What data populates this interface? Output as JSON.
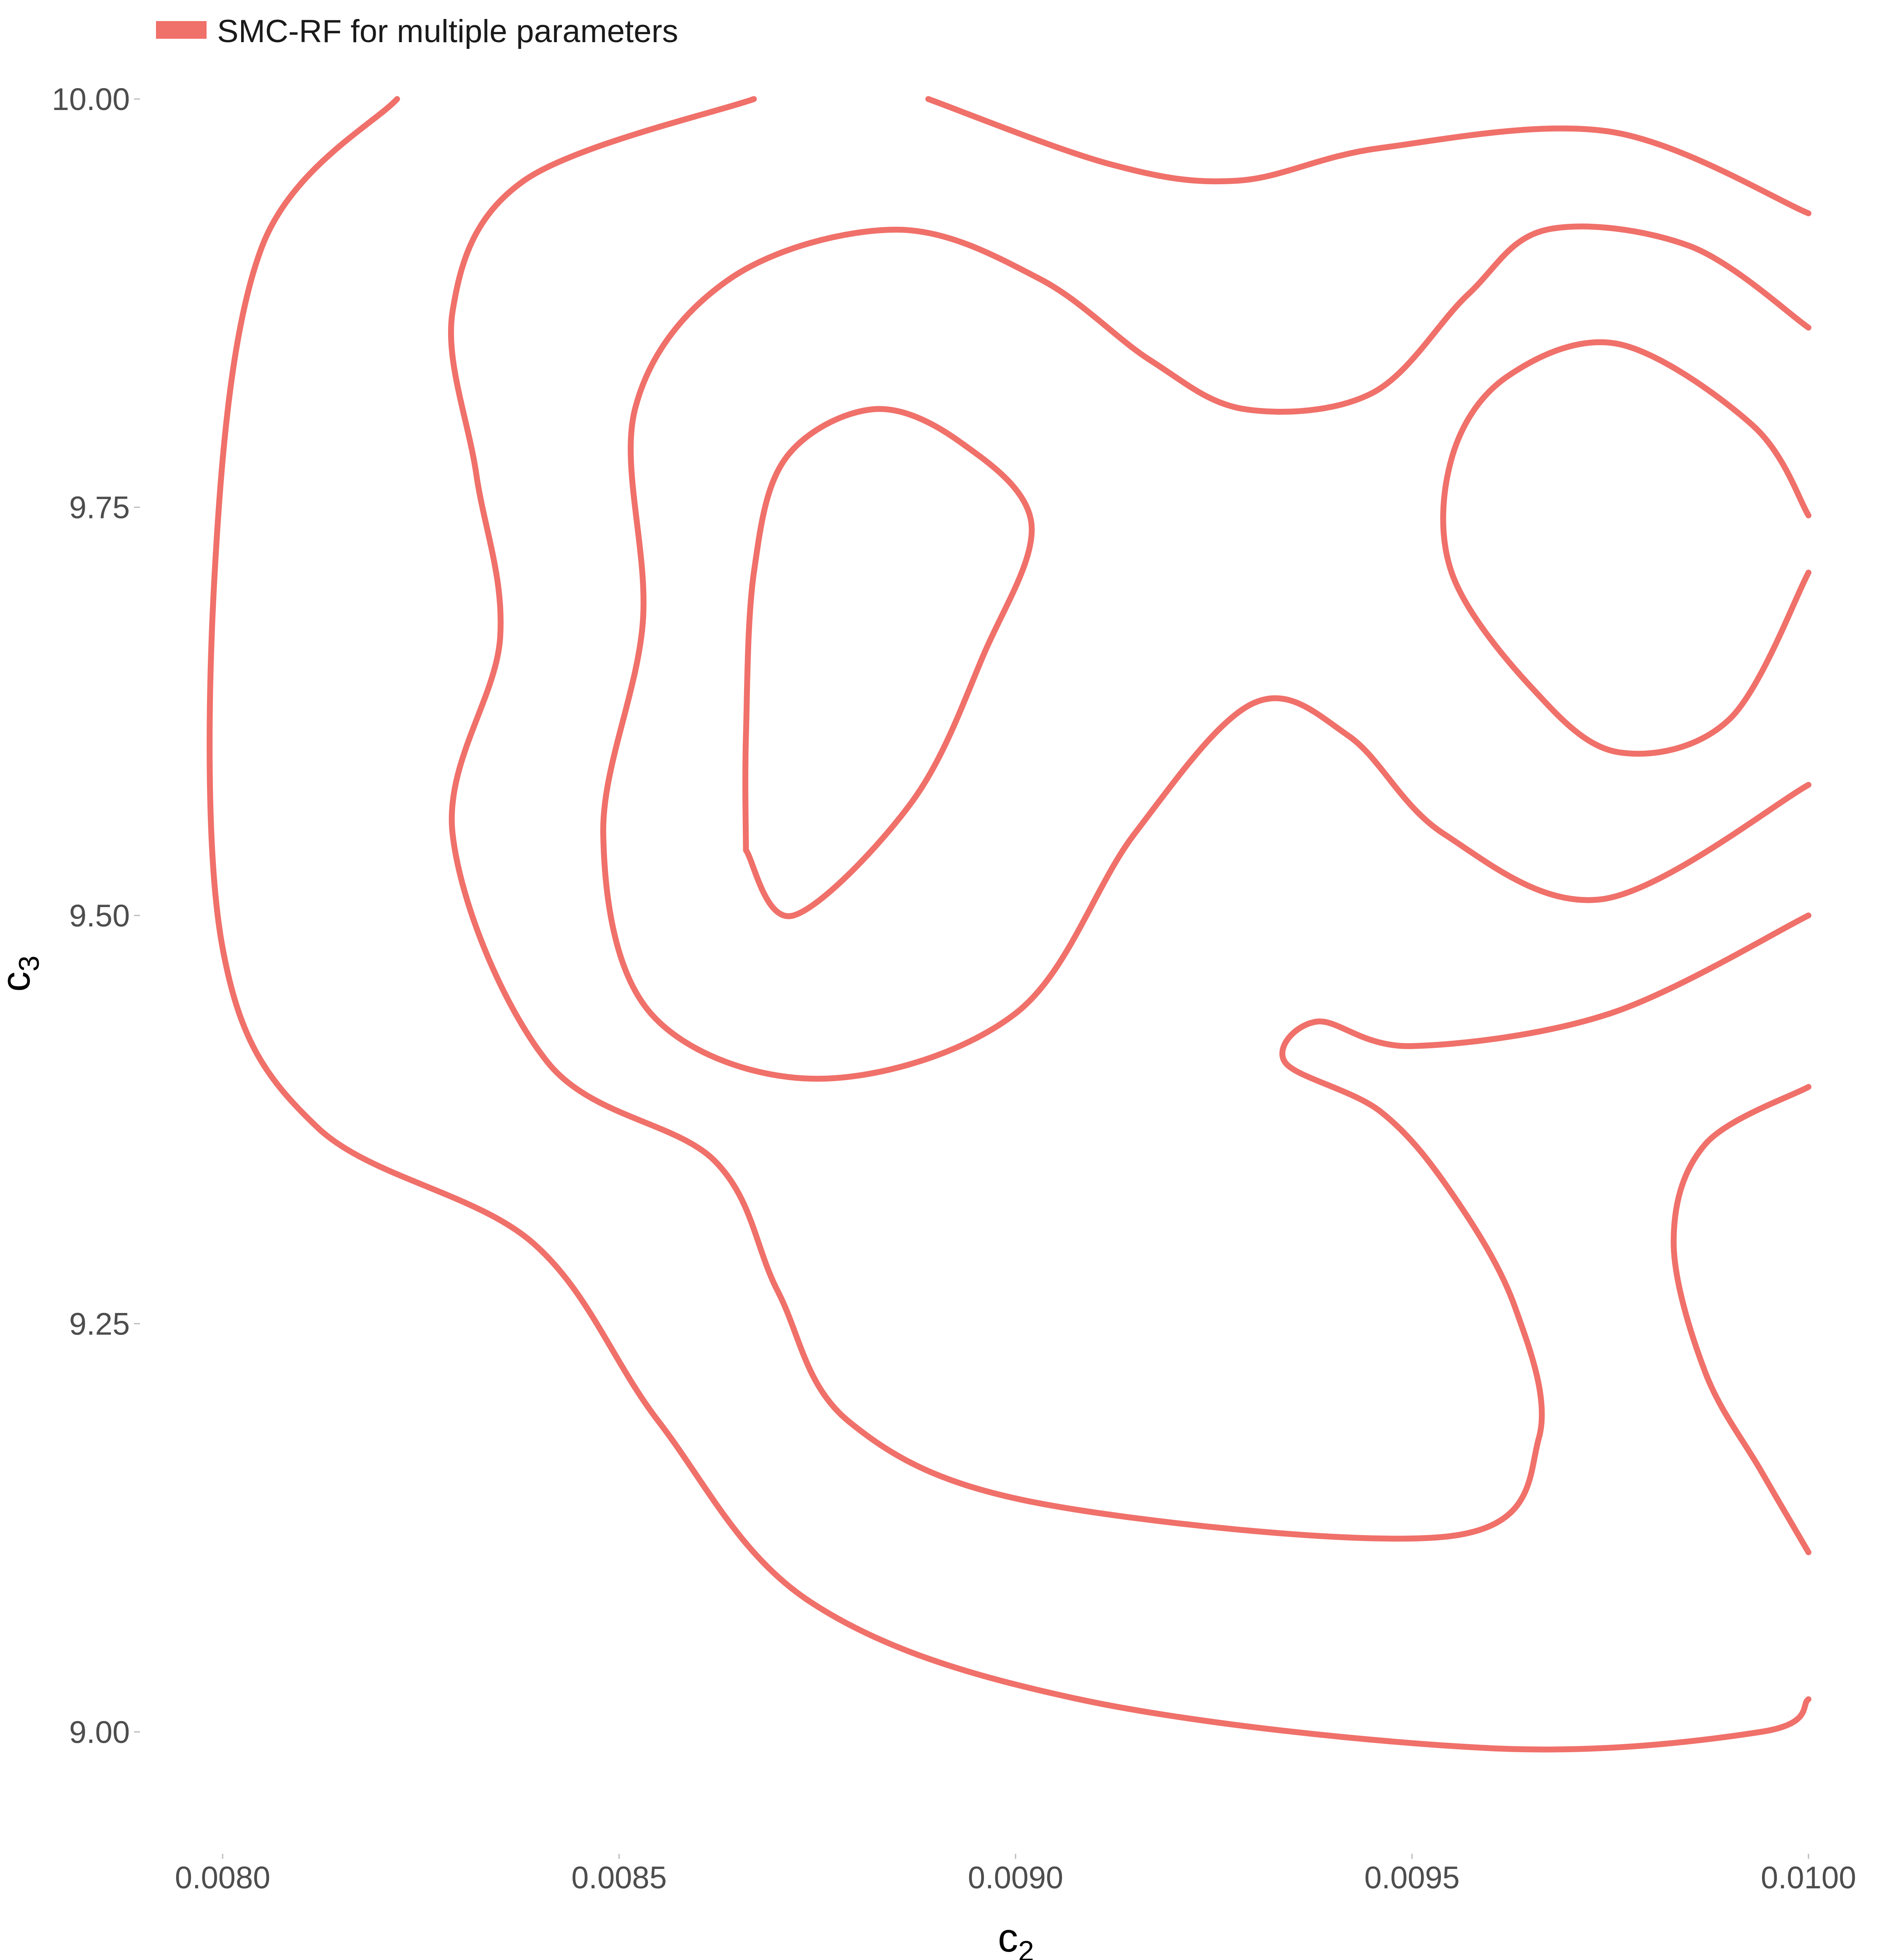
{
  "chart_data": {
    "type": "contour",
    "legend": {
      "label": "SMC-RF for multiple parameters",
      "color": "#F0706A",
      "placement": "top-left"
    },
    "xlabel": "c",
    "xlabel_sub": "2",
    "ylabel": "c",
    "ylabel_sub": "3",
    "xlim": [
      0.0079,
      0.01
    ],
    "ylim": [
      8.93,
      10.04
    ],
    "x_ticks": [
      {
        "value": 0.008,
        "label": "0.0080"
      },
      {
        "value": 0.0085,
        "label": "0.0085"
      },
      {
        "value": 0.009,
        "label": "0.0090"
      },
      {
        "value": 0.0095,
        "label": "0.0095"
      },
      {
        "value": 0.01,
        "label": "0.0100"
      }
    ],
    "y_ticks": [
      {
        "value": 9.0,
        "label": "9.00"
      },
      {
        "value": 9.25,
        "label": "9.25"
      },
      {
        "value": 9.5,
        "label": "9.50"
      },
      {
        "value": 9.75,
        "label": "9.75"
      },
      {
        "value": 10.0,
        "label": "10.00"
      }
    ],
    "grid": false,
    "contours": [
      {
        "points": [
          [
            0.00822,
            10.0
          ],
          [
            0.00805,
            9.91
          ],
          [
            0.00799,
            9.71
          ],
          [
            0.008,
            9.48
          ],
          [
            0.00812,
            9.37
          ],
          [
            0.00839,
            9.3
          ],
          [
            0.00855,
            9.19
          ],
          [
            0.00874,
            9.08
          ],
          [
            0.00908,
            9.02
          ],
          [
            0.0096,
            8.99
          ],
          [
            0.00994,
            9.0
          ],
          [
            0.01,
            9.02
          ]
        ]
      },
      {
        "points": [
          [
            0.00867,
            10.0
          ],
          [
            0.00838,
            9.95
          ],
          [
            0.00829,
            9.87
          ],
          [
            0.00832,
            9.77
          ],
          [
            0.00835,
            9.67
          ],
          [
            0.00829,
            9.55
          ],
          [
            0.00841,
            9.41
          ],
          [
            0.00862,
            9.35
          ],
          [
            0.0087,
            9.27
          ],
          [
            0.00879,
            9.19
          ],
          [
            0.00903,
            9.14
          ],
          [
            0.00955,
            9.12
          ],
          [
            0.00966,
            9.18
          ],
          [
            0.00963,
            9.26
          ],
          [
            0.00955,
            9.33
          ],
          [
            0.00946,
            9.38
          ],
          [
            0.00934,
            9.41
          ],
          [
            0.00938,
            9.435
          ],
          [
            0.0095,
            9.42
          ],
          [
            0.00975,
            9.44
          ],
          [
            0.01,
            9.5
          ]
        ]
      },
      {
        "points": [
          [
            0.00889,
            10.0
          ],
          [
            0.00912,
            9.96
          ],
          [
            0.00928,
            9.95
          ],
          [
            0.00946,
            9.97
          ],
          [
            0.00975,
            9.98
          ],
          [
            0.01,
            9.93
          ]
        ]
      },
      {
        "points": [
          [
            0.01,
            9.86
          ],
          [
            0.00985,
            9.91
          ],
          [
            0.00967,
            9.92
          ],
          [
            0.00957,
            9.88
          ],
          [
            0.00945,
            9.82
          ],
          [
            0.00929,
            9.81
          ],
          [
            0.00917,
            9.84
          ],
          [
            0.00903,
            9.89
          ],
          [
            0.00885,
            9.92
          ],
          [
            0.00864,
            9.89
          ],
          [
            0.00852,
            9.81
          ],
          [
            0.00853,
            9.68
          ],
          [
            0.00848,
            9.55
          ],
          [
            0.00854,
            9.44
          ],
          [
            0.00875,
            9.4
          ],
          [
            0.009,
            9.44
          ],
          [
            0.00915,
            9.55
          ],
          [
            0.0093,
            9.63
          ],
          [
            0.00942,
            9.61
          ],
          [
            0.00954,
            9.55
          ],
          [
            0.00974,
            9.51
          ],
          [
            0.01,
            9.58
          ]
        ]
      },
      {
        "points": [
          [
            0.00866,
            9.54
          ],
          [
            0.00866,
            9.61
          ],
          [
            0.00867,
            9.71
          ],
          [
            0.00871,
            9.78
          ],
          [
            0.00882,
            9.81
          ],
          [
            0.00893,
            9.79
          ],
          [
            0.00902,
            9.74
          ],
          [
            0.00896,
            9.66
          ],
          [
            0.00887,
            9.57
          ],
          [
            0.00872,
            9.5
          ],
          [
            0.00866,
            9.54
          ]
        ]
      },
      {
        "points": [
          [
            0.01,
            9.745
          ],
          [
            0.00993,
            9.8
          ],
          [
            0.00976,
            9.85
          ],
          [
            0.00962,
            9.83
          ],
          [
            0.00955,
            9.78
          ],
          [
            0.00955,
            9.71
          ],
          [
            0.00965,
            9.64
          ],
          [
            0.00976,
            9.6
          ],
          [
            0.0099,
            9.62
          ],
          [
            0.01,
            9.71
          ]
        ]
      },
      {
        "points": [
          [
            0.01,
            9.395
          ],
          [
            0.00987,
            9.36
          ],
          [
            0.00983,
            9.3
          ],
          [
            0.00987,
            9.22
          ],
          [
            0.00994,
            9.16
          ],
          [
            0.01,
            9.11
          ]
        ]
      }
    ]
  }
}
